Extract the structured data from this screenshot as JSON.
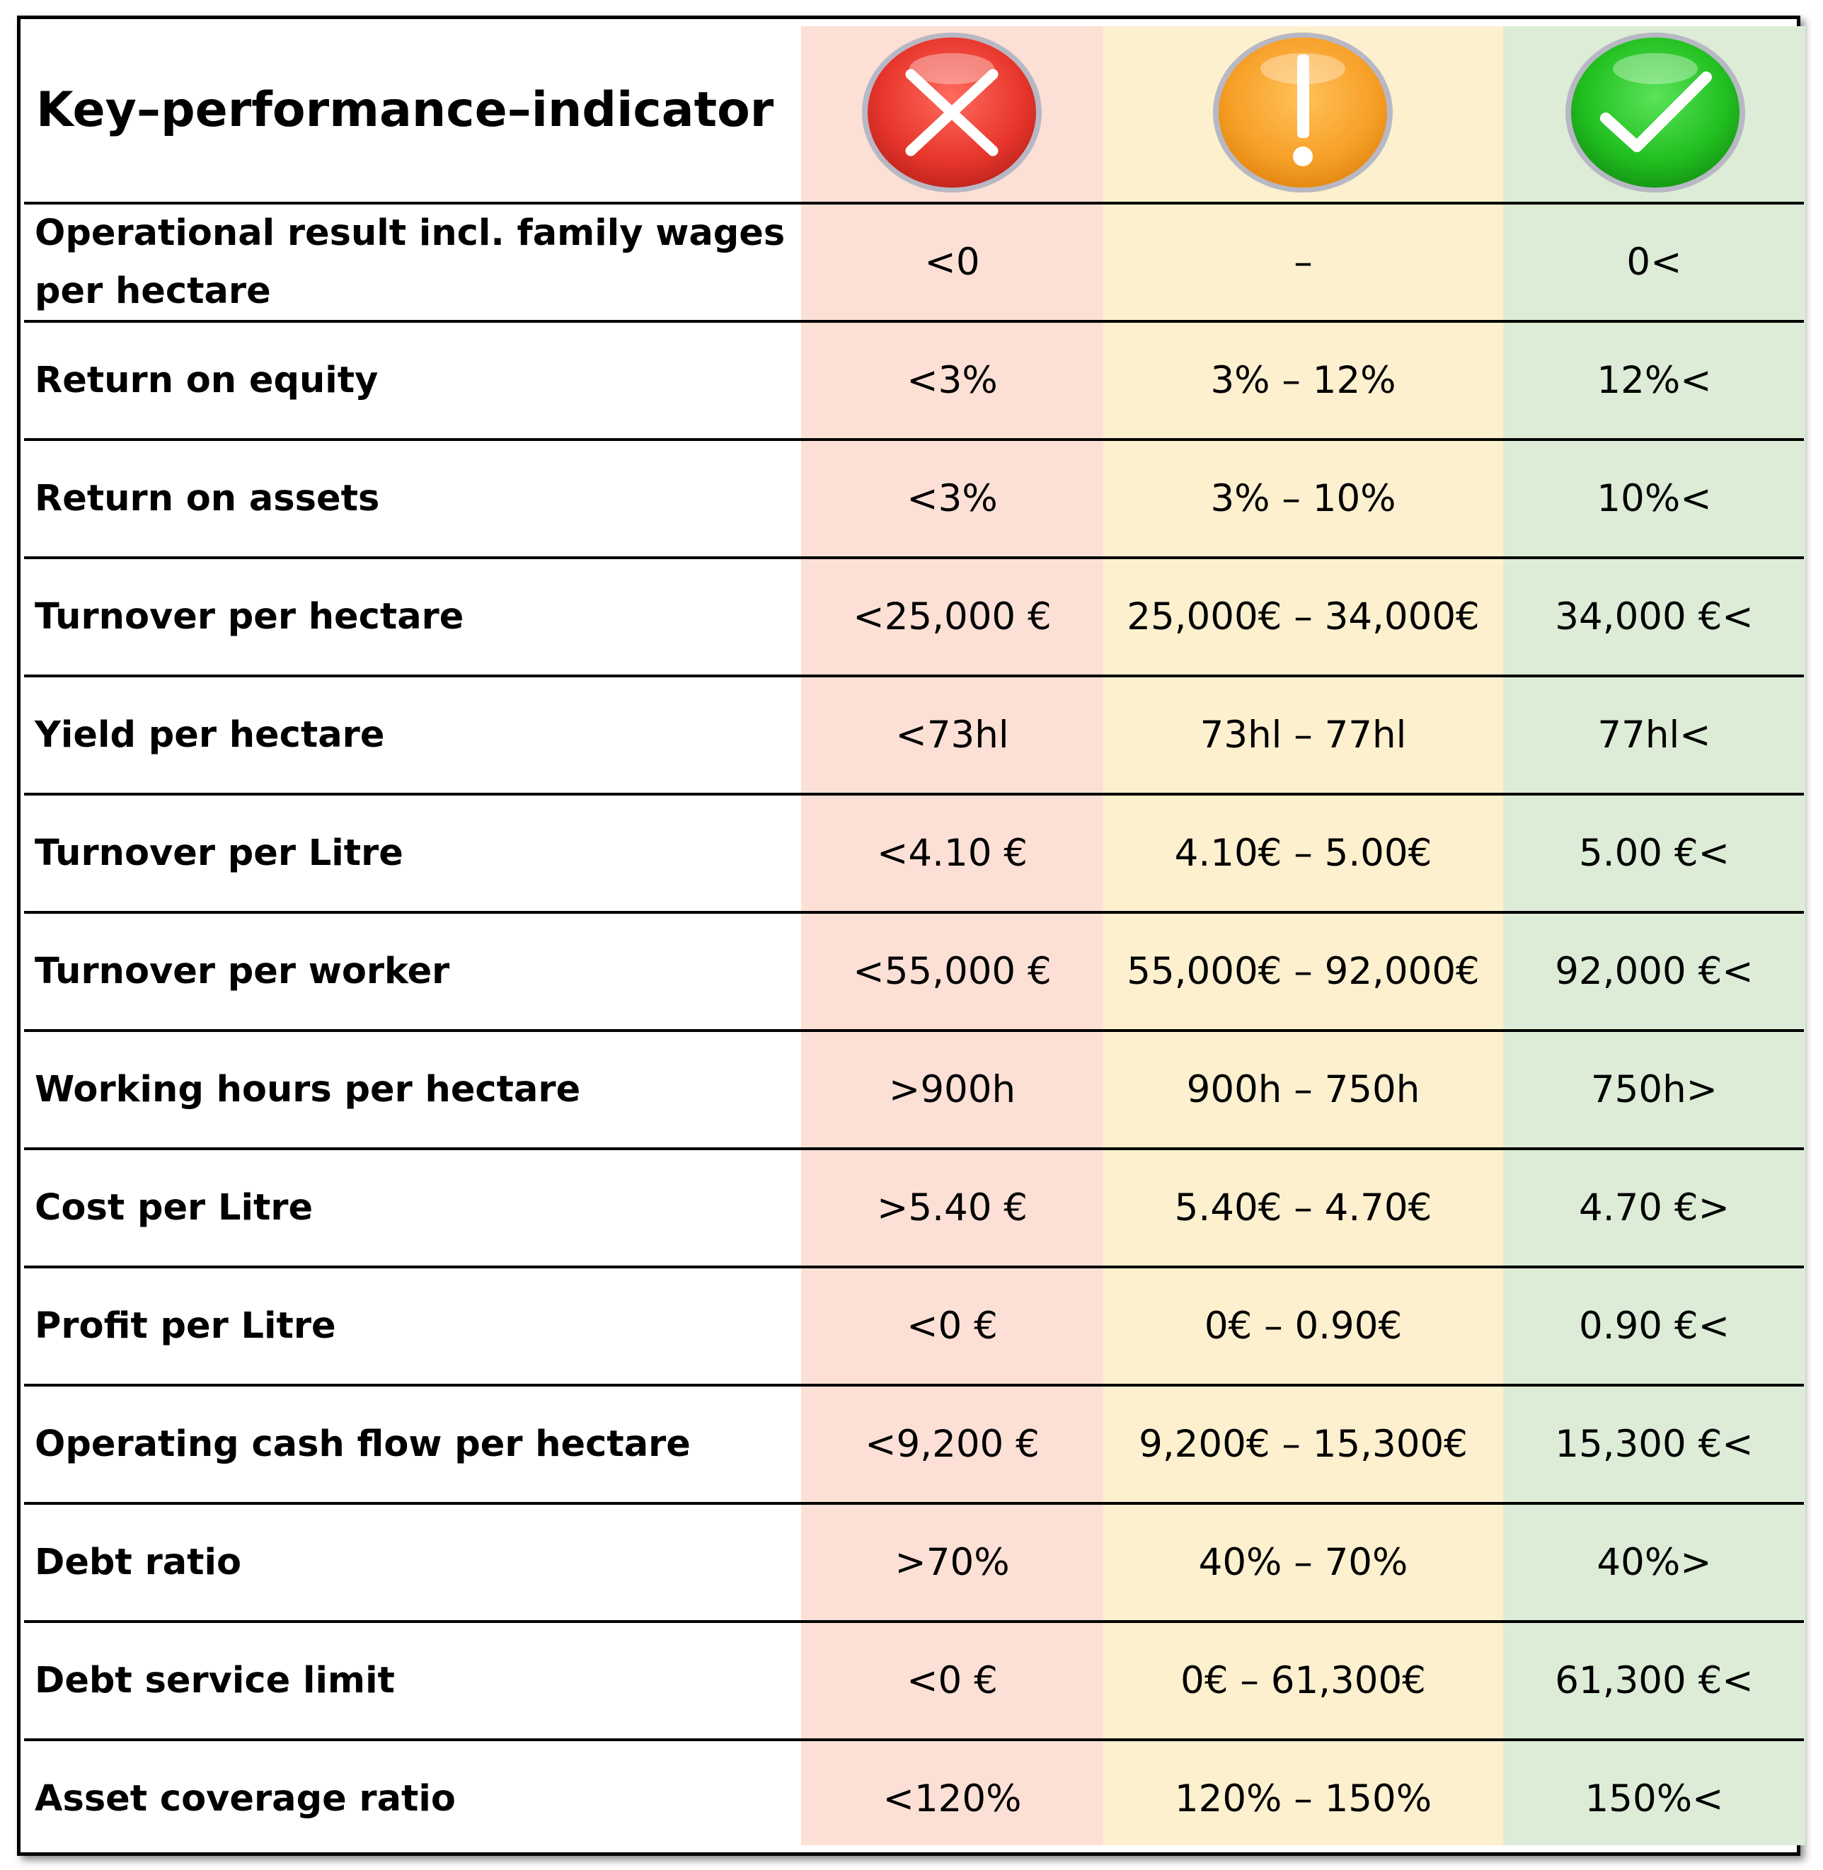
{
  "table": {
    "title": "Key–performance–indicator",
    "columns": [
      {
        "icon": "red-x-icon",
        "color": "#e8443a"
      },
      {
        "icon": "orange-exclamation-icon",
        "color": "#f7a028"
      },
      {
        "icon": "green-check-icon",
        "color": "#2cc42a"
      }
    ],
    "rows": [
      {
        "label": "Operational result incl. family wages per hectare",
        "red": "<0",
        "amber": "–",
        "green": "0<"
      },
      {
        "label": "Return on equity",
        "red": "<3%",
        "amber": "3% – 12%",
        "green": "12%<"
      },
      {
        "label": "Return on assets",
        "red": "<3%",
        "amber": "3% – 10%",
        "green": "10%<"
      },
      {
        "label": "Turnover per hectare",
        "red": "<25,000 €",
        "amber": "25,000€ – 34,000€",
        "green": "34,000 €<"
      },
      {
        "label": "Yield per hectare",
        "red": "<73hl",
        "amber": "73hl – 77hl",
        "green": "77hl<"
      },
      {
        "label": "Turnover per Litre",
        "red": "<4.10 €",
        "amber": "4.10€ – 5.00€",
        "green": "5.00 €<"
      },
      {
        "label": "Turnover per worker",
        "red": "<55,000 €",
        "amber": "55,000€ – 92,000€",
        "green": "92,000 €<"
      },
      {
        "label": "Working hours per hectare",
        "red": ">900h",
        "amber": "900h – 750h",
        "green": "750h>"
      },
      {
        "label": "Cost per Litre",
        "red": ">5.40 €",
        "amber": "5.40€ – 4.70€",
        "green": "4.70 €>"
      },
      {
        "label": "Profit per Litre",
        "red": "<0 €",
        "amber": "0€ – 0.90€",
        "green": "0.90 €<"
      },
      {
        "label": "Operating cash flow per hectare",
        "red": "<9,200 €",
        "amber": "9,200€ – 15,300€",
        "green": "15,300 €<"
      },
      {
        "label": "Debt ratio",
        "red": ">70%",
        "amber": "40% – 70%",
        "green": "40%>"
      },
      {
        "label": "Debt service limit",
        "red": "<0 €",
        "amber": "0€ – 61,300€",
        "green": "61,300 €<"
      },
      {
        "label": "Asset coverage ratio",
        "red": "<120%",
        "amber": "120% – 150%",
        "green": "150%<"
      }
    ]
  }
}
